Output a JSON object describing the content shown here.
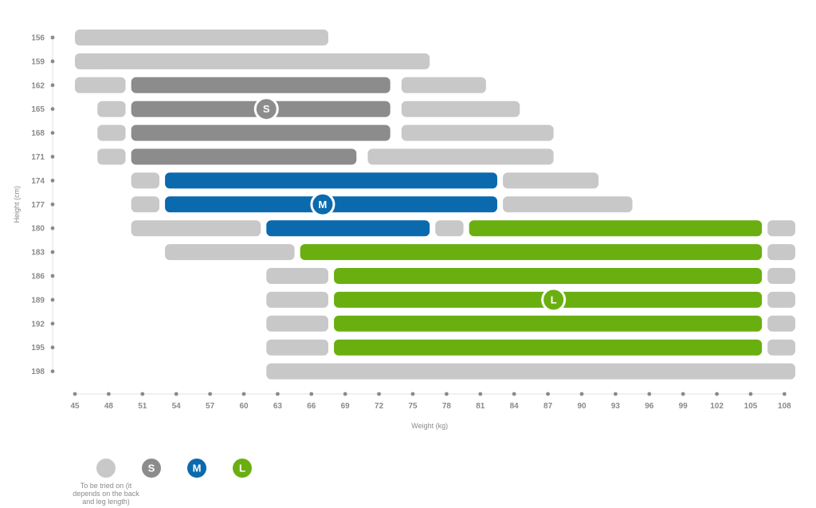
{
  "chart_data": {
    "type": "bar",
    "orientation": "horizontal-range",
    "title": "",
    "xlabel": "Weight (kg)",
    "ylabel": "Height (cm)",
    "x_ticks": [
      45,
      48,
      51,
      54,
      57,
      60,
      63,
      66,
      69,
      72,
      75,
      78,
      81,
      84,
      87,
      90,
      93,
      96,
      99,
      102,
      105,
      108
    ],
    "y_ticks": [
      156,
      159,
      162,
      165,
      168,
      171,
      174,
      177,
      180,
      183,
      186,
      189,
      192,
      195,
      198
    ],
    "xlim": [
      45,
      108
    ],
    "grid": false,
    "legend_position": "bottom-left",
    "colors": {
      "tryon": "#c8c8c8",
      "S": "#8c8c8c",
      "M": "#0a6aad",
      "L": "#6aaf10",
      "axis": "#8a8a8a"
    },
    "series": [
      {
        "key": "tryon",
        "name": "To be tried on (it depends on the back and leg length)",
        "legend_symbol": ""
      },
      {
        "key": "S",
        "name": "S",
        "legend_symbol": "S"
      },
      {
        "key": "M",
        "name": "M",
        "legend_symbol": "M"
      },
      {
        "key": "L",
        "name": "L",
        "legend_symbol": "L"
      }
    ],
    "rows": [
      {
        "height": 156,
        "segments": [
          {
            "size": "tryon",
            "from": 45,
            "to": 67.5
          }
        ]
      },
      {
        "height": 159,
        "segments": [
          {
            "size": "tryon",
            "from": 45,
            "to": 76.5
          }
        ]
      },
      {
        "height": 162,
        "segments": [
          {
            "size": "tryon",
            "from": 45,
            "to": 49.5
          },
          {
            "size": "S",
            "from": 50,
            "to": 73
          },
          {
            "size": "tryon",
            "from": 74,
            "to": 81.5
          }
        ]
      },
      {
        "height": 165,
        "segments": [
          {
            "size": "tryon",
            "from": 47,
            "to": 49.5
          },
          {
            "size": "S",
            "from": 50,
            "to": 73
          },
          {
            "size": "tryon",
            "from": 74,
            "to": 84.5
          }
        ]
      },
      {
        "height": 168,
        "segments": [
          {
            "size": "tryon",
            "from": 47,
            "to": 49.5
          },
          {
            "size": "S",
            "from": 50,
            "to": 73
          },
          {
            "size": "tryon",
            "from": 74,
            "to": 87.5
          }
        ]
      },
      {
        "height": 171,
        "segments": [
          {
            "size": "tryon",
            "from": 47,
            "to": 49.5
          },
          {
            "size": "S",
            "from": 50,
            "to": 70
          },
          {
            "size": "tryon",
            "from": 71,
            "to": 87.5
          }
        ]
      },
      {
        "height": 174,
        "segments": [
          {
            "size": "tryon",
            "from": 50,
            "to": 52.5
          },
          {
            "size": "M",
            "from": 53,
            "to": 82.5
          },
          {
            "size": "tryon",
            "from": 83,
            "to": 91.5
          }
        ]
      },
      {
        "height": 177,
        "segments": [
          {
            "size": "tryon",
            "from": 50,
            "to": 52.5
          },
          {
            "size": "M",
            "from": 53,
            "to": 82.5
          },
          {
            "size": "tryon",
            "from": 83,
            "to": 94.5
          }
        ]
      },
      {
        "height": 180,
        "segments": [
          {
            "size": "tryon",
            "from": 50,
            "to": 61.5
          },
          {
            "size": "M",
            "from": 62,
            "to": 76.5
          },
          {
            "size": "tryon",
            "from": 77,
            "to": 79.5
          },
          {
            "size": "L",
            "from": 80,
            "to": 106
          },
          {
            "size": "tryon",
            "from": 106.5,
            "to": 109
          }
        ]
      },
      {
        "height": 183,
        "segments": [
          {
            "size": "tryon",
            "from": 53,
            "to": 64.5
          },
          {
            "size": "L",
            "from": 65,
            "to": 106
          },
          {
            "size": "tryon",
            "from": 106.5,
            "to": 109
          }
        ]
      },
      {
        "height": 186,
        "segments": [
          {
            "size": "tryon",
            "from": 62,
            "to": 67.5
          },
          {
            "size": "L",
            "from": 68,
            "to": 106
          },
          {
            "size": "tryon",
            "from": 106.5,
            "to": 109
          }
        ]
      },
      {
        "height": 189,
        "segments": [
          {
            "size": "tryon",
            "from": 62,
            "to": 67.5
          },
          {
            "size": "L",
            "from": 68,
            "to": 106
          },
          {
            "size": "tryon",
            "from": 106.5,
            "to": 109
          }
        ]
      },
      {
        "height": 192,
        "segments": [
          {
            "size": "tryon",
            "from": 62,
            "to": 67.5
          },
          {
            "size": "L",
            "from": 68,
            "to": 106
          },
          {
            "size": "tryon",
            "from": 106.5,
            "to": 109
          }
        ]
      },
      {
        "height": 195,
        "segments": [
          {
            "size": "tryon",
            "from": 62,
            "to": 67.5
          },
          {
            "size": "L",
            "from": 68,
            "to": 106
          },
          {
            "size": "tryon",
            "from": 106.5,
            "to": 109
          }
        ]
      },
      {
        "height": 198,
        "segments": [
          {
            "size": "tryon",
            "from": 62,
            "to": 109
          }
        ]
      }
    ],
    "size_badges": [
      {
        "label": "S",
        "size": "S",
        "height": 165,
        "weight": 62
      },
      {
        "label": "M",
        "size": "M",
        "height": 177,
        "weight": 67
      },
      {
        "label": "L",
        "size": "L",
        "height": 189,
        "weight": 87.5
      }
    ]
  }
}
